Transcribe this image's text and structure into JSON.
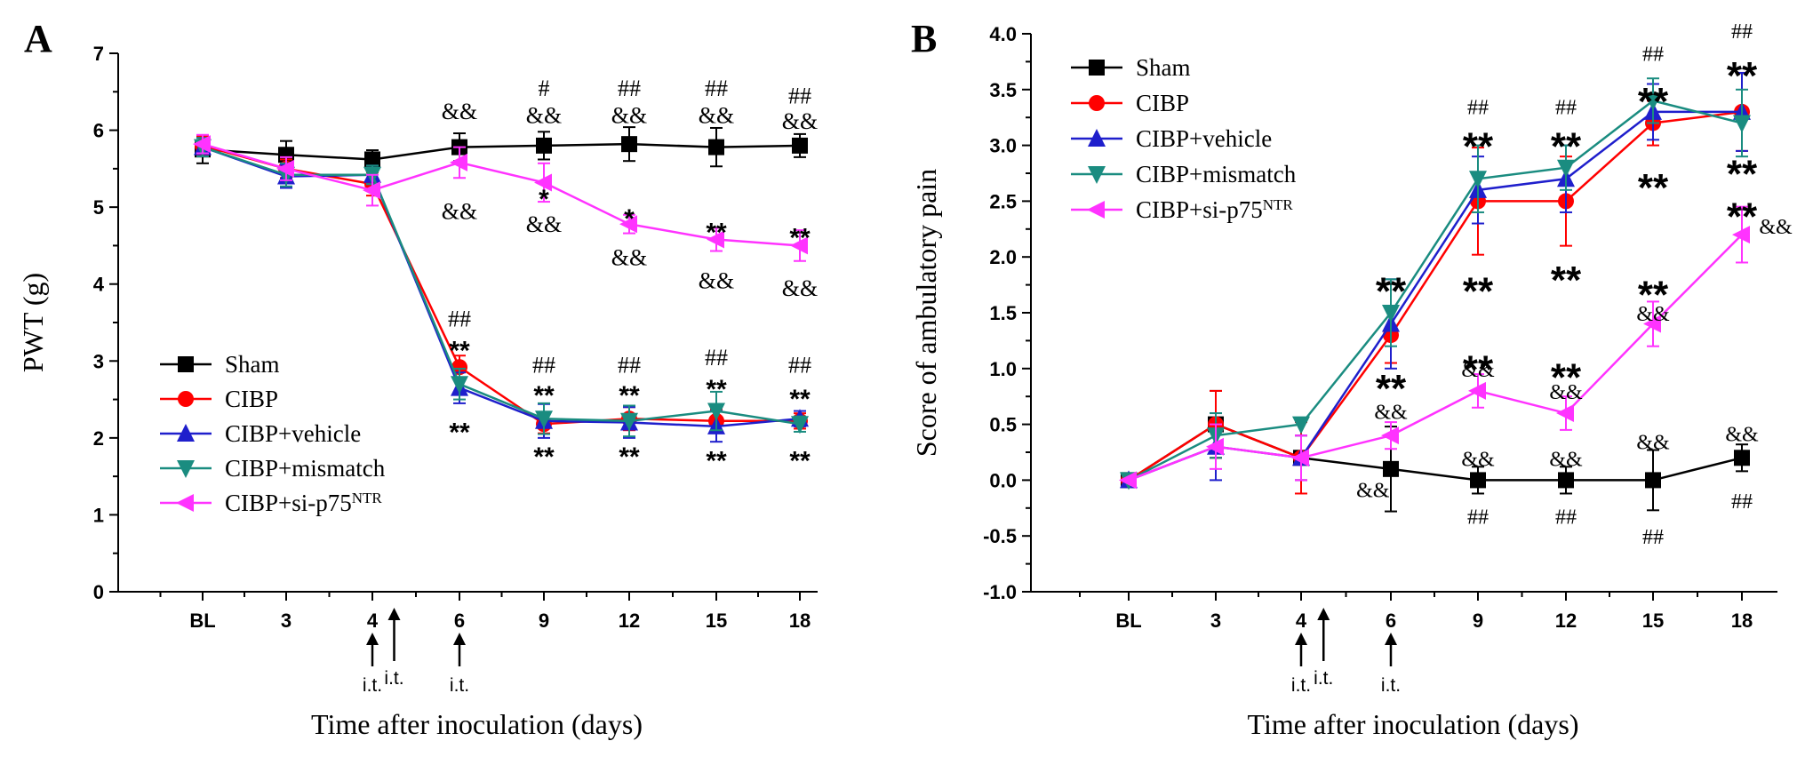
{
  "chart_data": [
    {
      "panel": "A",
      "type": "line",
      "xlabel": "Time after inoculation (days)",
      "ylabel": "PWT (g)",
      "categories": [
        "BL",
        "3",
        "4",
        "6",
        "9",
        "12",
        "15",
        "18"
      ],
      "ylim": [
        0,
        7
      ],
      "yticks": [
        0,
        1,
        2,
        3,
        4,
        5,
        6,
        7
      ],
      "legend_position": "lower-left",
      "series": [
        {
          "name": "Sham",
          "marker": "square",
          "color": "#000000",
          "values": [
            5.75,
            5.68,
            5.62,
            5.78,
            5.8,
            5.82,
            5.78,
            5.8
          ],
          "errors": [
            0.18,
            0.18,
            0.12,
            0.18,
            0.18,
            0.22,
            0.25,
            0.15
          ]
        },
        {
          "name": "CIBP",
          "marker": "circle",
          "color": "#ff0000",
          "values": [
            5.8,
            5.5,
            5.3,
            2.92,
            2.18,
            2.25,
            2.22,
            2.22
          ],
          "errors": [
            0.12,
            0.12,
            0.15,
            0.15,
            0.12,
            0.15,
            0.15,
            0.1
          ]
        },
        {
          "name": "CIBP+vehicle",
          "marker": "triangle-up",
          "color": "#1f1fcc",
          "values": [
            5.78,
            5.4,
            5.42,
            2.65,
            2.22,
            2.2,
            2.15,
            2.25
          ],
          "errors": [
            0.12,
            0.15,
            0.12,
            0.2,
            0.22,
            0.2,
            0.2,
            0.1
          ]
        },
        {
          "name": "CIBP+mismatch",
          "marker": "triangle-down",
          "color": "#1a8c80",
          "values": [
            5.78,
            5.42,
            5.42,
            2.7,
            2.25,
            2.22,
            2.35,
            2.18
          ],
          "errors": [
            0.12,
            0.15,
            0.12,
            0.2,
            0.2,
            0.2,
            0.25,
            0.1
          ]
        },
        {
          "name": "CIBP+si-p75NTR",
          "marker": "triangle-left",
          "color": "#ff33ff",
          "values": [
            5.82,
            5.5,
            5.22,
            5.58,
            5.32,
            4.78,
            4.58,
            4.5
          ],
          "errors": [
            0.12,
            0.15,
            0.2,
            0.2,
            0.25,
            0.12,
            0.15,
            0.2
          ]
        }
      ],
      "annotations": [
        {
          "text": "&&",
          "x": "6",
          "y": 6.25,
          "size": "small"
        },
        {
          "text": "#",
          "x": "9",
          "y": 6.55,
          "size": "small"
        },
        {
          "text": "&&",
          "x": "9",
          "y": 6.2,
          "size": "small"
        },
        {
          "text": "##",
          "x": "12",
          "y": 6.55,
          "size": "small"
        },
        {
          "text": "&&",
          "x": "12",
          "y": 6.2,
          "size": "small"
        },
        {
          "text": "##",
          "x": "15",
          "y": 6.55,
          "size": "small"
        },
        {
          "text": "&&",
          "x": "15",
          "y": 6.2,
          "size": "small"
        },
        {
          "text": "##",
          "x": "18",
          "y": 6.45,
          "size": "small"
        },
        {
          "text": "&&",
          "x": "18",
          "y": 6.12,
          "size": "small"
        },
        {
          "text": "&&",
          "x": "6",
          "y": 4.95,
          "size": "small"
        },
        {
          "text": "*",
          "x": "9",
          "y": 5.15,
          "size": "small"
        },
        {
          "text": "&&",
          "x": "9",
          "y": 4.78,
          "size": "small"
        },
        {
          "text": "*",
          "x": "12",
          "y": 4.9,
          "size": "small"
        },
        {
          "text": "&&",
          "x": "12",
          "y": 4.35,
          "size": "small"
        },
        {
          "text": "**",
          "x": "15",
          "y": 4.72,
          "size": "small"
        },
        {
          "text": "&&",
          "x": "15",
          "y": 4.05,
          "size": "small"
        },
        {
          "text": "**",
          "x": "18",
          "y": 4.65,
          "size": "small"
        },
        {
          "text": "&&",
          "x": "18",
          "y": 3.95,
          "size": "small"
        },
        {
          "text": "##",
          "x": "6",
          "y": 3.55,
          "size": "small"
        },
        {
          "text": "**",
          "x": "6",
          "y": 3.18,
          "size": "small"
        },
        {
          "text": "**",
          "x": "6",
          "y": 2.12,
          "size": "small"
        },
        {
          "text": "##",
          "x": "9",
          "y": 2.95,
          "size": "small"
        },
        {
          "text": "**",
          "x": "9",
          "y": 2.6,
          "size": "small"
        },
        {
          "text": "**",
          "x": "9",
          "y": 1.8,
          "size": "small"
        },
        {
          "text": "##",
          "x": "12",
          "y": 2.95,
          "size": "small"
        },
        {
          "text": "**",
          "x": "12",
          "y": 2.6,
          "size": "small"
        },
        {
          "text": "**",
          "x": "12",
          "y": 1.8,
          "size": "small"
        },
        {
          "text": "##",
          "x": "15",
          "y": 3.05,
          "size": "small"
        },
        {
          "text": "**",
          "x": "15",
          "y": 2.68,
          "size": "small"
        },
        {
          "text": "**",
          "x": "15",
          "y": 1.75,
          "size": "small"
        },
        {
          "text": "##",
          "x": "18",
          "y": 2.95,
          "size": "small"
        },
        {
          "text": "**",
          "x": "18",
          "y": 2.55,
          "size": "small"
        },
        {
          "text": "**",
          "x": "18",
          "y": 1.75,
          "size": "small"
        }
      ],
      "injection_marks": [
        {
          "x": "4",
          "label": "i.t."
        },
        {
          "x": "4.5",
          "label": "i.t."
        },
        {
          "x": "6",
          "label": "i.t."
        }
      ]
    },
    {
      "panel": "B",
      "type": "line",
      "xlabel": "Time after inoculation (days)",
      "ylabel": "Score of ambulatory pain",
      "categories": [
        "BL",
        "3",
        "4",
        "6",
        "9",
        "12",
        "15",
        "18"
      ],
      "ylim": [
        -1.0,
        4.0
      ],
      "yticks": [
        -1.0,
        -0.5,
        0.0,
        0.5,
        1.0,
        1.5,
        2.0,
        2.5,
        3.0,
        3.5,
        4.0
      ],
      "legend_position": "top-left",
      "series": [
        {
          "name": "Sham",
          "marker": "square",
          "color": "#000000",
          "values": [
            0.0,
            0.5,
            0.2,
            0.1,
            0.0,
            0.0,
            0.0,
            0.2
          ],
          "errors": [
            0.0,
            0.3,
            0.2,
            0.38,
            0.12,
            0.12,
            0.27,
            0.12
          ]
        },
        {
          "name": "CIBP",
          "marker": "circle",
          "color": "#ff0000",
          "values": [
            0.0,
            0.5,
            0.2,
            1.3,
            2.5,
            2.5,
            3.2,
            3.3
          ],
          "errors": [
            0.0,
            0.3,
            0.32,
            0.25,
            0.48,
            0.4,
            0.2,
            0.35
          ]
        },
        {
          "name": "CIBP+vehicle",
          "marker": "triangle-up",
          "color": "#1f1fcc",
          "values": [
            0.0,
            0.3,
            0.2,
            1.4,
            2.6,
            2.7,
            3.3,
            3.3
          ],
          "errors": [
            0.0,
            0.3,
            0.2,
            0.4,
            0.3,
            0.3,
            0.25,
            0.35
          ]
        },
        {
          "name": "CIBP+mismatch",
          "marker": "triangle-down",
          "color": "#1a8c80",
          "values": [
            0.0,
            0.4,
            0.5,
            1.5,
            2.7,
            2.8,
            3.4,
            3.2
          ],
          "errors": [
            0.0,
            0.2,
            0.0,
            0.3,
            0.3,
            0.2,
            0.2,
            0.3
          ]
        },
        {
          "name": "CIBP+si-p75NTR",
          "marker": "triangle-left",
          "color": "#ff33ff",
          "values": [
            0.0,
            0.3,
            0.2,
            0.4,
            0.8,
            0.6,
            1.4,
            2.2
          ],
          "errors": [
            0.0,
            0.2,
            0.2,
            0.12,
            0.15,
            0.15,
            0.2,
            0.25
          ]
        }
      ],
      "annotations": [
        {
          "text": "##",
          "x": "9",
          "y": 3.35,
          "size": "small"
        },
        {
          "text": "**",
          "x": "9",
          "y": 3.05,
          "size": "big"
        },
        {
          "text": "##",
          "x": "12",
          "y": 3.35,
          "size": "small"
        },
        {
          "text": "**",
          "x": "12",
          "y": 3.05,
          "size": "big"
        },
        {
          "text": "##",
          "x": "15",
          "y": 3.83,
          "size": "small"
        },
        {
          "text": "**",
          "x": "15",
          "y": 3.45,
          "size": "big"
        },
        {
          "text": "##",
          "x": "18",
          "y": 4.03,
          "size": "small"
        },
        {
          "text": "**",
          "x": "18",
          "y": 3.68,
          "size": "big"
        },
        {
          "text": "**",
          "x": "6",
          "y": 1.75,
          "size": "big"
        },
        {
          "text": "**",
          "x": "9",
          "y": 1.75,
          "size": "big"
        },
        {
          "text": "**",
          "x": "12",
          "y": 1.85,
          "size": "big"
        },
        {
          "text": "**",
          "x": "15",
          "y": 2.68,
          "size": "big"
        },
        {
          "text": "**",
          "x": "18",
          "y": 2.8,
          "size": "big"
        },
        {
          "text": "**",
          "x": "6",
          "y": 0.88,
          "size": "big"
        },
        {
          "text": "**",
          "x": "9",
          "y": 1.05,
          "size": "big"
        },
        {
          "text": "**",
          "x": "12",
          "y": 0.98,
          "size": "big"
        },
        {
          "text": "**",
          "x": "15",
          "y": 1.72,
          "size": "big"
        },
        {
          "text": "**",
          "x": "18",
          "y": 2.42,
          "size": "big"
        },
        {
          "text": "&&",
          "x": "18",
          "y": 2.28,
          "size": "small",
          "dx": 1
        },
        {
          "text": "&&",
          "x": "15",
          "y": 1.5,
          "size": "small"
        },
        {
          "text": "&&",
          "x": "12",
          "y": 0.8,
          "size": "small"
        },
        {
          "text": "&&",
          "x": "9",
          "y": 1.0,
          "size": "small"
        },
        {
          "text": "&&",
          "x": "6",
          "y": 0.62,
          "size": "small"
        },
        {
          "text": "&&",
          "x": "5.6",
          "y": -0.08,
          "size": "small"
        },
        {
          "text": "&&",
          "x": "9",
          "y": 0.2,
          "size": "small"
        },
        {
          "text": "&&",
          "x": "12",
          "y": 0.2,
          "size": "small"
        },
        {
          "text": "&&",
          "x": "15",
          "y": 0.35,
          "size": "small"
        },
        {
          "text": "&&",
          "x": "18",
          "y": 0.42,
          "size": "small"
        },
        {
          "text": "##",
          "x": "9",
          "y": -0.32,
          "size": "small"
        },
        {
          "text": "##",
          "x": "12",
          "y": -0.32,
          "size": "small"
        },
        {
          "text": "##",
          "x": "15",
          "y": -0.5,
          "size": "small"
        },
        {
          "text": "##",
          "x": "18",
          "y": -0.18,
          "size": "small"
        }
      ],
      "injection_marks": [
        {
          "x": "4",
          "label": "i.t."
        },
        {
          "x": "4.5",
          "label": "i.t."
        },
        {
          "x": "6",
          "label": "i.t."
        }
      ]
    }
  ]
}
